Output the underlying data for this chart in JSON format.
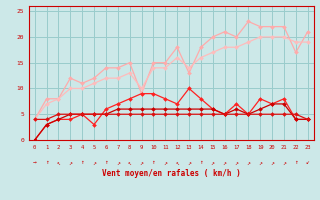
{
  "x": [
    0,
    1,
    2,
    3,
    4,
    5,
    6,
    7,
    8,
    9,
    10,
    11,
    12,
    13,
    14,
    15,
    16,
    17,
    18,
    19,
    20,
    21,
    22,
    23
  ],
  "line1": [
    4,
    8,
    8,
    12,
    11,
    12,
    14,
    14,
    15,
    9,
    15,
    15,
    18,
    13,
    18,
    20,
    21,
    20,
    23,
    22,
    22,
    22,
    17,
    21
  ],
  "line2": [
    4,
    7,
    8,
    10,
    10,
    11,
    12,
    12,
    13,
    10,
    14,
    14,
    16,
    14,
    16,
    17,
    18,
    18,
    19,
    20,
    20,
    20,
    19,
    19
  ],
  "line3": [
    0,
    3,
    4,
    4,
    5,
    3,
    6,
    7,
    8,
    9,
    9,
    8,
    7,
    10,
    8,
    6,
    5,
    7,
    5,
    8,
    7,
    8,
    4,
    4
  ],
  "line4": [
    0,
    3,
    4,
    5,
    5,
    5,
    5,
    6,
    6,
    6,
    6,
    6,
    6,
    6,
    6,
    6,
    5,
    6,
    5,
    6,
    7,
    7,
    4,
    4
  ],
  "line5": [
    4,
    4,
    5,
    5,
    5,
    5,
    5,
    5,
    5,
    5,
    5,
    5,
    5,
    5,
    5,
    5,
    5,
    5,
    5,
    5,
    5,
    5,
    5,
    4
  ],
  "background": "#cce8e8",
  "grid_color": "#99cccc",
  "line1_color": "#ffaaaa",
  "line2_color": "#ffbbbb",
  "line3_color": "#ff2222",
  "line4_color": "#cc0000",
  "line5_color": "#dd1111",
  "xlabel": "Vent moyen/en rafales ( km/h )",
  "ylim": [
    0,
    26
  ],
  "xlim": [
    -0.5,
    23.5
  ],
  "yticks": [
    0,
    5,
    10,
    15,
    20,
    25
  ],
  "wind_symbols": [
    "→",
    "↑",
    "↖",
    "↗",
    "↑",
    "↗",
    "↑",
    "↗",
    "↖",
    "↗",
    "↑",
    "↗",
    "↖",
    "↗",
    "↑",
    "↗",
    "↗",
    "↗",
    "↗",
    "↗",
    "↗",
    "↗",
    "↑",
    "↙"
  ]
}
